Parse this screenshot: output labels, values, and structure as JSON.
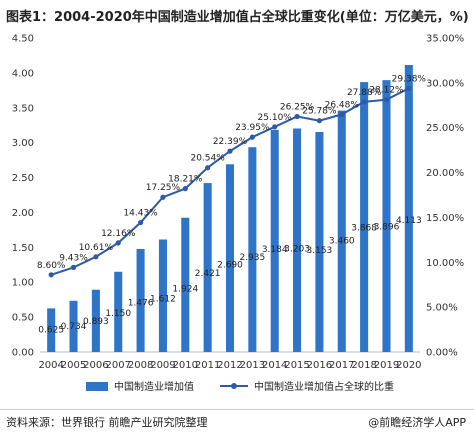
{
  "title": "图表1：2004-2020年中国制造业增加值占全球比重变化(单位：万亿美元，%)",
  "source": "资料来源：世界银行 前瞻产业研究院整理",
  "brand": "@前瞻经济学人APP",
  "colors": {
    "bar": "#2e75c9",
    "line": "#2e5aa8",
    "grid": "#e6e6e6"
  },
  "chart_data": {
    "type": "bar",
    "categories": [
      "2004",
      "2005",
      "2006",
      "2007",
      "2008",
      "2009",
      "2010",
      "2011",
      "2012",
      "2013",
      "2014",
      "2015",
      "2016",
      "2017",
      "2018",
      "2019",
      "2020"
    ],
    "series": [
      {
        "name": "中国制造业增加值",
        "type": "bar",
        "axis": "left",
        "values": [
          0.625,
          0.734,
          0.893,
          1.15,
          1.476,
          1.612,
          1.924,
          2.421,
          2.69,
          2.935,
          3.184,
          3.203,
          3.153,
          3.46,
          3.868,
          3.896,
          4.113
        ],
        "labels": [
          "0.625",
          "0.734",
          "0.893",
          "1.150",
          "1.476",
          "1.612",
          "1.924",
          "2.421",
          "2.690",
          "2.935",
          "3.184",
          "3.203",
          "3.153",
          "3.460",
          "3.868",
          "3.896",
          "4.113"
        ]
      },
      {
        "name": "中国制造业增加值占全球的比重",
        "type": "line",
        "axis": "right",
        "values": [
          8.6,
          9.43,
          10.61,
          12.16,
          14.43,
          17.25,
          18.21,
          20.54,
          22.39,
          23.95,
          25.1,
          26.25,
          25.78,
          26.48,
          27.88,
          28.12,
          29.38
        ],
        "labels": [
          "8.60%",
          "9.43%",
          "10.61%",
          "12.16%",
          "14.43%",
          "17.25%",
          "18.21%",
          "20.54%",
          "22.39%",
          "23.95%",
          "25.10%",
          "26.25%",
          "25.78%",
          "26.48%",
          "27.88%",
          "28.12%",
          "29.38%"
        ]
      }
    ],
    "y_left": {
      "min": 0,
      "max": 4.5,
      "ticks": [
        "0.00",
        "0.50",
        "1.00",
        "1.50",
        "2.00",
        "2.50",
        "3.00",
        "3.50",
        "4.00",
        "4.50"
      ]
    },
    "y_right": {
      "min": 0,
      "max": 35,
      "ticks": [
        "0.00%",
        "5.00%",
        "10.00%",
        "15.00%",
        "20.00%",
        "25.00%",
        "30.00%",
        "35.00%"
      ]
    },
    "grid": false,
    "legend": "bottom"
  }
}
